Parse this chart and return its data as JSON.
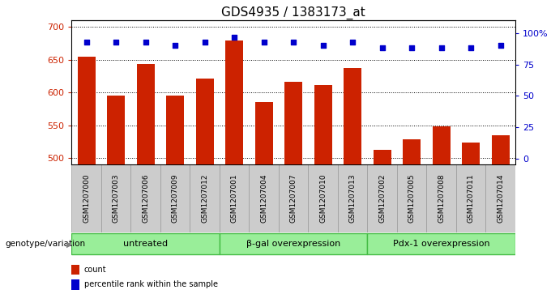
{
  "title": "GDS4935 / 1383173_at",
  "samples": [
    "GSM1207000",
    "GSM1207003",
    "GSM1207006",
    "GSM1207009",
    "GSM1207012",
    "GSM1207001",
    "GSM1207004",
    "GSM1207007",
    "GSM1207010",
    "GSM1207013",
    "GSM1207002",
    "GSM1207005",
    "GSM1207008",
    "GSM1207011",
    "GSM1207014"
  ],
  "counts": [
    655,
    595,
    644,
    596,
    621,
    679,
    586,
    617,
    611,
    638,
    512,
    529,
    549,
    524,
    535
  ],
  "percentile_ranks": [
    93,
    93,
    93,
    90,
    93,
    97,
    93,
    93,
    90,
    93,
    88,
    88,
    88,
    88,
    90
  ],
  "groups": [
    {
      "label": "untreated",
      "start": 0,
      "end": 5
    },
    {
      "label": "β-gal overexpression",
      "start": 5,
      "end": 10
    },
    {
      "label": "Pdx-1 overexpression",
      "start": 10,
      "end": 15
    }
  ],
  "bar_color": "#CC2200",
  "dot_color": "#0000CC",
  "group_fill_color": "#99EE99",
  "group_border_color": "#44BB44",
  "tick_bg_color": "#CCCCCC",
  "tick_border_color": "#999999",
  "ylim_left": [
    490,
    710
  ],
  "ylim_right": [
    -5,
    110
  ],
  "yticks_left": [
    500,
    550,
    600,
    650,
    700
  ],
  "yticks_right": [
    0,
    25,
    50,
    75,
    100
  ],
  "ylabel_left_color": "#CC2200",
  "ylabel_right_color": "#0000CC",
  "grid_color": "#000000",
  "title_fontsize": 11,
  "tick_fontsize": 7,
  "label_fontsize": 6.5,
  "group_fontsize": 8,
  "legend_fontsize": 7,
  "genotype_label": "genotype/variation"
}
